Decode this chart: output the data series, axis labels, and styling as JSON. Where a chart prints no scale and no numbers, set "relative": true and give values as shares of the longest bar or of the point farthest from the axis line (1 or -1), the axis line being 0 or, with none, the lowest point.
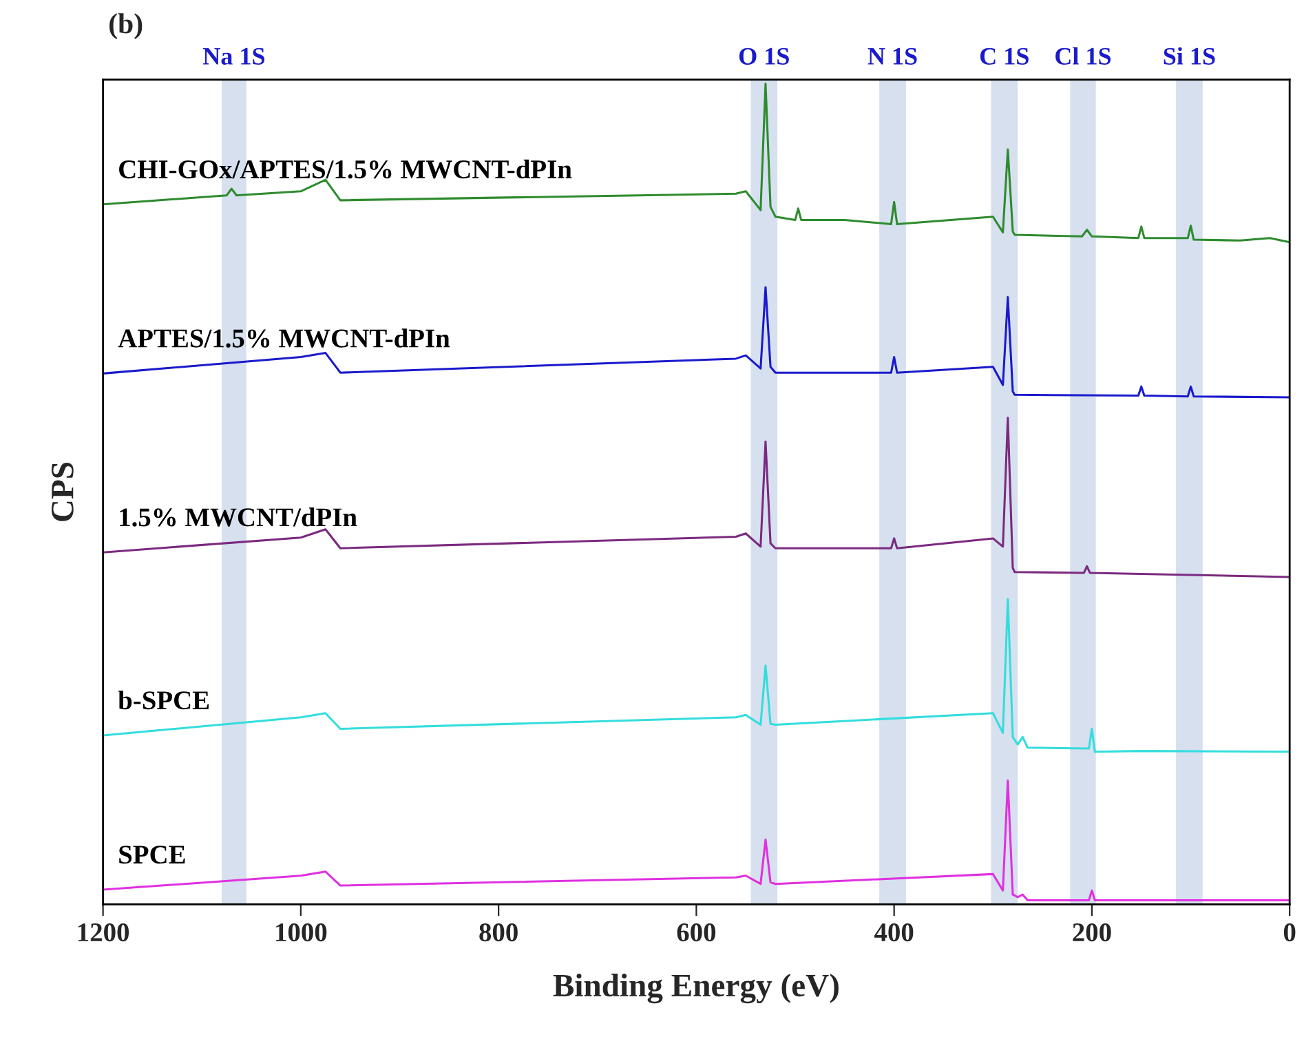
{
  "chart_data": {
    "type": "line",
    "title": "(b)",
    "xlabel": "Binding Energy (eV)",
    "ylabel": "CPS",
    "relative": true,
    "legend": false,
    "grid": false,
    "xlim": [
      1200,
      0
    ],
    "xticks": [
      0,
      200,
      400,
      600,
      800,
      1000,
      1200
    ],
    "series": [
      {
        "name": "CHI-GOx/APTES/1.5% MWCNT-dPIn",
        "color": "#2e8b2e",
        "x": [
          1200,
          1075,
          1070,
          1065,
          1000,
          975,
          960,
          560,
          550,
          535,
          530,
          525,
          520,
          500,
          497,
          494,
          450,
          403,
          400,
          397,
          300,
          290,
          285,
          280,
          278,
          210,
          205,
          200,
          153,
          150,
          147,
          103,
          100,
          97,
          50,
          20,
          0
        ],
        "values": [
          0.853,
          0.864,
          0.872,
          0.864,
          0.869,
          0.883,
          0.858,
          0.866,
          0.869,
          0.846,
          1.0,
          0.85,
          0.838,
          0.834,
          0.848,
          0.834,
          0.834,
          0.829,
          0.856,
          0.829,
          0.838,
          0.819,
          0.92,
          0.82,
          0.816,
          0.814,
          0.822,
          0.814,
          0.812,
          0.826,
          0.812,
          0.812,
          0.827,
          0.81,
          0.809,
          0.812,
          0.807
        ]
      },
      {
        "name": "APTES/1.5% MWCNT-dPIn",
        "color": "#1a1acc",
        "x": [
          1200,
          1000,
          975,
          960,
          560,
          550,
          535,
          530,
          525,
          520,
          403,
          400,
          397,
          300,
          290,
          285,
          280,
          278,
          153,
          150,
          147,
          103,
          100,
          97,
          0
        ],
        "values": [
          0.647,
          0.667,
          0.672,
          0.648,
          0.665,
          0.669,
          0.653,
          0.752,
          0.655,
          0.648,
          0.648,
          0.667,
          0.648,
          0.655,
          0.633,
          0.74,
          0.625,
          0.621,
          0.62,
          0.631,
          0.62,
          0.619,
          0.631,
          0.619,
          0.618
        ]
      },
      {
        "name": "1.5% MWCNT/dPIn",
        "color": "#7b2a80",
        "x": [
          1200,
          1000,
          975,
          960,
          560,
          550,
          535,
          530,
          525,
          520,
          403,
          400,
          397,
          300,
          290,
          285,
          280,
          278,
          208,
          205,
          202,
          0
        ],
        "values": [
          0.429,
          0.447,
          0.457,
          0.434,
          0.448,
          0.452,
          0.436,
          0.564,
          0.44,
          0.434,
          0.434,
          0.446,
          0.434,
          0.446,
          0.436,
          0.593,
          0.41,
          0.405,
          0.404,
          0.412,
          0.404,
          0.399
        ]
      },
      {
        "name": "b-SPCE",
        "color": "#33dddd",
        "x": [
          1200,
          1000,
          975,
          960,
          560,
          550,
          535,
          530,
          525,
          520,
          300,
          290,
          285,
          280,
          275,
          270,
          265,
          203,
          200,
          197,
          150,
          0
        ],
        "values": [
          0.206,
          0.228,
          0.233,
          0.214,
          0.228,
          0.231,
          0.219,
          0.291,
          0.22,
          0.219,
          0.233,
          0.209,
          0.372,
          0.204,
          0.195,
          0.204,
          0.191,
          0.19,
          0.214,
          0.186,
          0.187,
          0.186
        ]
      },
      {
        "name": "SPCE",
        "color": "#e030e0",
        "x": [
          1200,
          1000,
          975,
          960,
          560,
          550,
          535,
          530,
          525,
          520,
          300,
          290,
          285,
          280,
          275,
          270,
          265,
          203,
          200,
          197,
          0
        ],
        "values": [
          0.018,
          0.035,
          0.04,
          0.023,
          0.033,
          0.035,
          0.025,
          0.079,
          0.027,
          0.025,
          0.037,
          0.017,
          0.151,
          0.012,
          0.009,
          0.012,
          0.005,
          0.005,
          0.017,
          0.005,
          0.005
        ]
      }
    ],
    "bands": [
      {
        "axis": "x",
        "from": 1080,
        "to": 1055,
        "label": "Na 1S",
        "color": "#d6e0ef"
      },
      {
        "axis": "x",
        "from": 545,
        "to": 518,
        "label": "O 1S",
        "color": "#d6e0ef"
      },
      {
        "axis": "x",
        "from": 415,
        "to": 388,
        "label": "N 1S",
        "color": "#d6e0ef"
      },
      {
        "axis": "x",
        "from": 302,
        "to": 275,
        "label": "C 1S",
        "color": "#d6e0ef"
      },
      {
        "axis": "x",
        "from": 222,
        "to": 196,
        "label": "Cl 1S",
        "color": "#d6e0ef"
      },
      {
        "axis": "x",
        "from": 115,
        "to": 88,
        "label": "Si 1S",
        "color": "#d6e0ef"
      }
    ]
  }
}
